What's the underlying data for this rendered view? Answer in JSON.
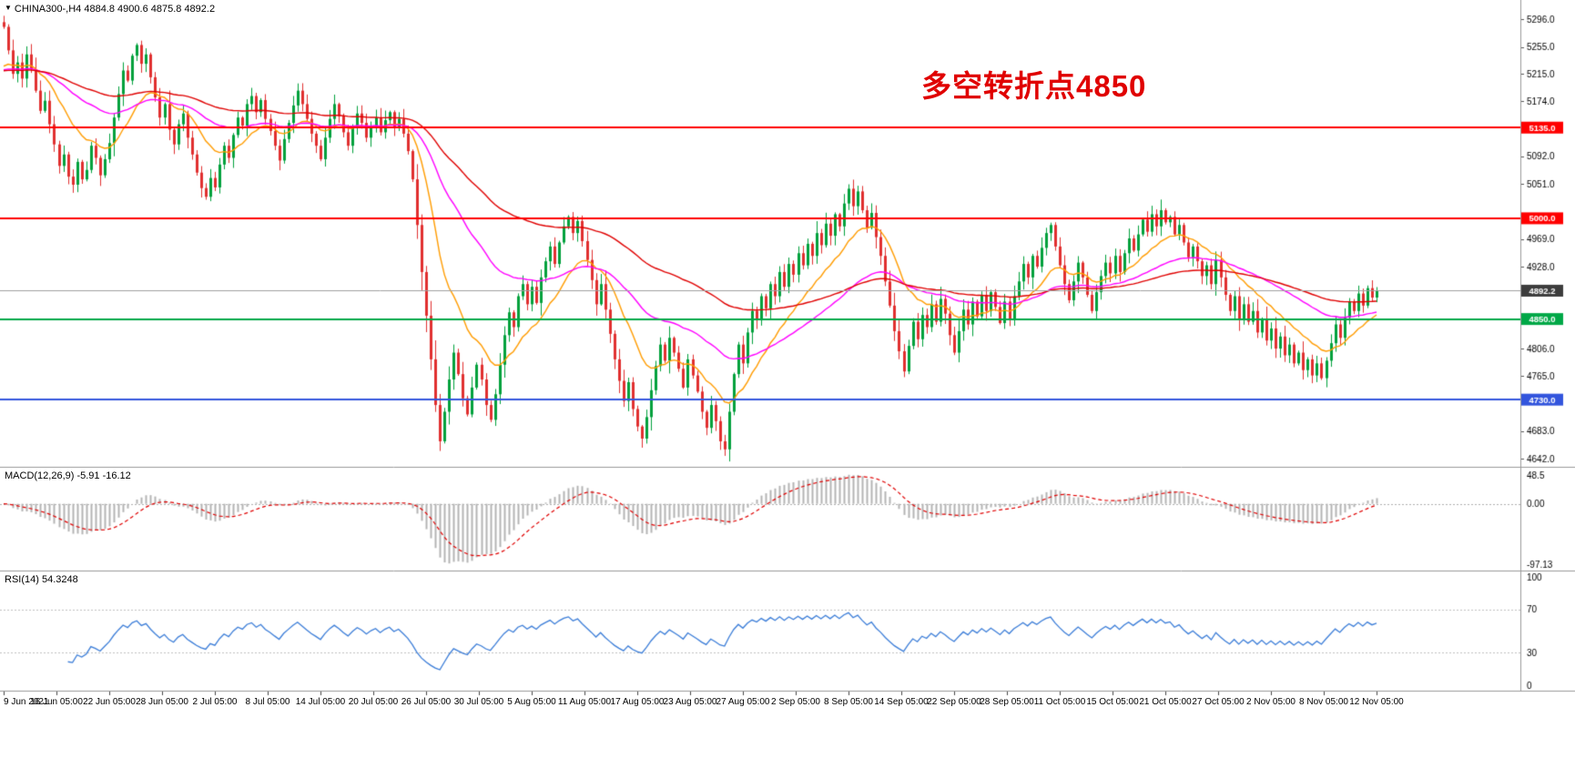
{
  "header": {
    "dropdown_icon": "▼",
    "display": "CHINA300-,H4 4884.8 4900.6 4875.8 4892.2",
    "symbol": "CHINA300-",
    "timeframe": "H4"
  },
  "annotation": {
    "text": "多空转折点4850",
    "color": "#e00000"
  },
  "chart_data": {
    "type": "candlestick",
    "symbol": "CHINA300-",
    "timeframe": "H4",
    "ohlc_current": {
      "open": 4884.8,
      "high": 4900.6,
      "low": 4875.8,
      "close": 4892.2
    },
    "candle_up_color": "#00a13c",
    "candle_down_color": "#e12f2f",
    "first_open": 5292,
    "closes": [
      5285,
      5250,
      5215,
      5232,
      5208,
      5244,
      5222,
      5190,
      5160,
      5175,
      5140,
      5110,
      5078,
      5095,
      5062,
      5050,
      5084,
      5058,
      5072,
      5108,
      5090,
      5064,
      5088,
      5112,
      5150,
      5185,
      5220,
      5205,
      5242,
      5258,
      5230,
      5244,
      5210,
      5180,
      5150,
      5170,
      5132,
      5110,
      5140,
      5156,
      5120,
      5095,
      5068,
      5045,
      5032,
      5060,
      5046,
      5080,
      5108,
      5090,
      5124,
      5150,
      5138,
      5170,
      5182,
      5158,
      5176,
      5148,
      5130,
      5108,
      5086,
      5118,
      5142,
      5168,
      5190,
      5170,
      5148,
      5126,
      5108,
      5088,
      5120,
      5148,
      5170,
      5152,
      5128,
      5108,
      5134,
      5156,
      5142,
      5120,
      5138,
      5150,
      5128,
      5146,
      5158,
      5136,
      5148,
      5126,
      5100,
      5058,
      4990,
      4920,
      4855,
      4790,
      4722,
      4668,
      4712,
      4760,
      4800,
      4768,
      4732,
      4708,
      4748,
      4782,
      4760,
      4722,
      4700,
      4738,
      4782,
      4826,
      4860,
      4838,
      4884,
      4902,
      4872,
      4898,
      4874,
      4912,
      4936,
      4958,
      4932,
      4964,
      4988,
      5002,
      4978,
      4996,
      4966,
      4938,
      4908,
      4872,
      4902,
      4864,
      4828,
      4790,
      4758,
      4728,
      4756,
      4716,
      4690,
      4672,
      4704,
      4744,
      4780,
      4812,
      4788,
      4822,
      4800,
      4776,
      4748,
      4790,
      4766,
      4742,
      4712,
      4688,
      4722,
      4698,
      4668,
      4656,
      4712,
      4768,
      4812,
      4784,
      4830,
      4862,
      4848,
      4884,
      4866,
      4902,
      4884,
      4920,
      4898,
      4932,
      4916,
      4948,
      4930,
      4962,
      4944,
      4978,
      4960,
      4992,
      4974,
      5006,
      4988,
      5022,
      5044,
      5018,
      5040,
      5012,
      4986,
      5008,
      4972,
      4944,
      4906,
      4870,
      4832,
      4802,
      4772,
      4810,
      4846,
      4820,
      4856,
      4838,
      4872,
      4846,
      4880,
      4858,
      4826,
      4800,
      4832,
      4864,
      4842,
      4876,
      4854,
      4886,
      4862,
      4890,
      4868,
      4844,
      4876,
      4850,
      4884,
      4906,
      4932,
      4912,
      4944,
      4928,
      4956,
      4978,
      4990,
      4958,
      4930,
      4902,
      4878,
      4906,
      4934,
      4912,
      4886,
      4862,
      4890,
      4914,
      4934,
      4918,
      4944,
      4920,
      4948,
      4970,
      4952,
      4976,
      4998,
      4980,
      5006,
      4988,
      5012,
      4994,
      5002,
      4976,
      4990,
      4964,
      4942,
      4958,
      4936,
      4914,
      4930,
      4902,
      4938,
      4912,
      4886,
      4862,
      4884,
      4850,
      4872,
      4846,
      4862,
      4830,
      4850,
      4818,
      4836,
      4806,
      4824,
      4796,
      4812,
      4784,
      4800,
      4774,
      4790,
      4766,
      4784,
      4762,
      4788,
      4814,
      4842,
      4822,
      4852,
      4876,
      4862,
      4888,
      4870,
      4896,
      4882,
      4892.2
    ],
    "moving_averages": [
      {
        "name": "fast-ma",
        "period": 15,
        "color": "#ff9c00"
      },
      {
        "name": "mid-ma",
        "period": 45,
        "color": "#ff00ff"
      },
      {
        "name": "slow-ma",
        "period": 90,
        "color": "#e00000"
      }
    ],
    "hlines": [
      {
        "price": 5135.0,
        "label": "5135.0",
        "color": "#ff0000",
        "width": 2,
        "badge": "#ff0000"
      },
      {
        "price": 5000.0,
        "label": "5000.0",
        "color": "#ff0000",
        "width": 2,
        "badge": "#ff0000"
      },
      {
        "price": 4892.2,
        "label": "4892.2",
        "color": "#a0a0a0",
        "width": 1,
        "badge": "#3c3c3c"
      },
      {
        "price": 4850.0,
        "label": "4850.0",
        "color": "#00a847",
        "width": 2,
        "badge": "#00a847"
      },
      {
        "price": 4730.0,
        "label": "4730.0",
        "color": "#3355dd",
        "width": 2,
        "badge": "#3355dd"
      }
    ],
    "price_axis": {
      "min": 4630,
      "max": 5325,
      "ticks": [
        5296,
        5255,
        5215,
        5174,
        5133,
        5092,
        5051,
        5010,
        4969,
        4928,
        4888,
        4847,
        4806,
        4765,
        4724,
        4683,
        4642
      ]
    },
    "x_labels": [
      "9 Jun 2021",
      "16 Jun 05:00",
      "22 Jun 05:00",
      "28 Jun 05:00",
      "2 Jul 05:00",
      "8 Jul 05:00",
      "14 Jul 05:00",
      "20 Jul 05:00",
      "26 Jul 05:00",
      "30 Jul 05:00",
      "5 Aug 05:00",
      "11 Aug 05:00",
      "17 Aug 05:00",
      "23 Aug 05:00",
      "27 Aug 05:00",
      "2 Sep 05:00",
      "8 Sep 05:00",
      "14 Sep 05:00",
      "22 Sep 05:00",
      "28 Sep 05:00",
      "11 Oct 05:00",
      "15 Oct 05:00",
      "21 Oct 05:00",
      "27 Oct 05:00",
      "2 Nov 05:00",
      "8 Nov 05:00",
      "12 Nov 05:00"
    ],
    "indicators": {
      "macd": {
        "display": "MACD(12,26,9) -5.91 -16.12",
        "params": [
          12,
          26,
          9
        ],
        "main_value": -5.91,
        "signal_value": -16.12,
        "ticks": [
          "48.5",
          "0.00",
          "-97.13"
        ],
        "hist_color": "#b4b4b4",
        "signal_color": "#e00000"
      },
      "rsi": {
        "display": "RSI(14) 54.3248",
        "period": 14,
        "value": 54.3248,
        "ticks": [
          "100",
          "70",
          "30",
          "0"
        ],
        "levels": [
          70,
          30
        ],
        "line_color": "#3b7dd8",
        "level_color": "#c0c0c0"
      }
    }
  }
}
